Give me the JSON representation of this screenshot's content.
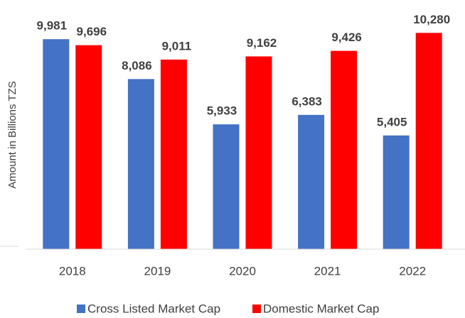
{
  "chart_data": {
    "type": "bar",
    "ylabel": "Amount in Billions TZS",
    "categories": [
      "2018",
      "2019",
      "2020",
      "2021",
      "2022"
    ],
    "series": [
      {
        "name": "Cross Listed Market Cap",
        "color": "#4472c4",
        "values": [
          9981,
          8086,
          5933,
          6383,
          5405
        ],
        "value_labels": [
          "9,981",
          "8,086",
          "5,933",
          "6,383",
          "5,405"
        ]
      },
      {
        "name": "Domestic Market Cap",
        "color": "#ff0000",
        "values": [
          9696,
          9011,
          9162,
          9426,
          10280
        ],
        "value_labels": [
          "9,696",
          "9,011",
          "9,162",
          "9,426",
          "10,280"
        ]
      }
    ],
    "ylim": [
      0,
      11000
    ],
    "legend": "bottom"
  }
}
